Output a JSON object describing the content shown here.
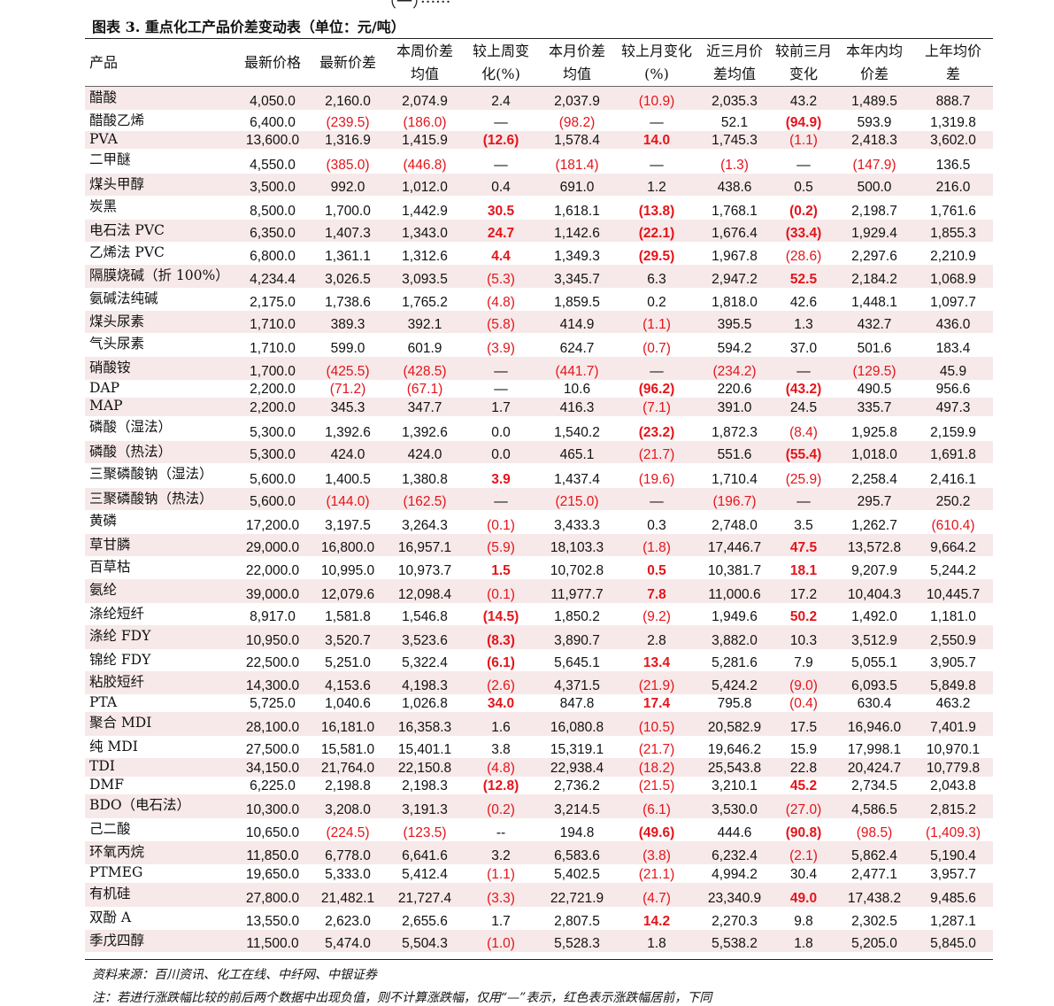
{
  "top_cut": "（一）······",
  "title": "图表 3. 重点化工产品价差变动表（单位：元/吨）",
  "headers": [
    [
      "产品"
    ],
    [
      "最新价格"
    ],
    [
      "最新价差"
    ],
    [
      "本周价差",
      "均值"
    ],
    [
      "较上周变",
      "化(%)"
    ],
    [
      "本月价差",
      "均值"
    ],
    [
      "较上月变化",
      "(%)"
    ],
    [
      "近三月价",
      "差均值"
    ],
    [
      "较前三月",
      "变化"
    ],
    [
      "本年内均",
      "价差"
    ],
    [
      "上年均价",
      "差"
    ]
  ],
  "rows": [
    [
      "醋酸",
      "4,050.0",
      "2,160.0",
      "2,074.9",
      "2.4",
      "2,037.9",
      "(10.9)",
      "2,035.3",
      "43.2",
      "1,489.5",
      "888.7"
    ],
    [
      "醋酸乙烯",
      "6,400.0",
      "(239.5)",
      "(186.0)",
      "—",
      "(98.2)",
      "—",
      "52.1",
      "(94.9)",
      "593.9",
      "1,319.8"
    ],
    [
      "PVA",
      "13,600.0",
      "1,316.9",
      "1,415.9",
      "(12.6)",
      "1,578.4",
      "14.0",
      "1,745.3",
      "(1.1)",
      "2,418.3",
      "3,602.0"
    ],
    [
      "二甲醚",
      "4,550.0",
      "(385.0)",
      "(446.8)",
      "—",
      "(181.4)",
      "—",
      "(1.3)",
      "—",
      "(147.9)",
      "136.5"
    ],
    [
      "煤头甲醇",
      "3,500.0",
      "992.0",
      "1,012.0",
      "0.4",
      "691.0",
      "1.2",
      "438.6",
      "0.5",
      "500.0",
      "216.0"
    ],
    [
      "炭黑",
      "8,500.0",
      "1,700.0",
      "1,442.9",
      "30.5",
      "1,618.1",
      "(13.8)",
      "1,768.1",
      "(0.2)",
      "2,198.7",
      "1,761.6"
    ],
    [
      "电石法 PVC",
      "6,350.0",
      "1,407.3",
      "1,343.0",
      "24.7",
      "1,142.6",
      "(22.1)",
      "1,676.4",
      "(33.4)",
      "1,929.4",
      "1,855.3"
    ],
    [
      "乙烯法 PVC",
      "6,800.0",
      "1,361.1",
      "1,312.6",
      "4.4",
      "1,349.3",
      "(29.5)",
      "1,967.8",
      "(28.6)",
      "2,297.6",
      "2,210.9"
    ],
    [
      "隔膜烧碱（折 100%）",
      "4,234.4",
      "3,026.5",
      "3,093.5",
      "(5.3)",
      "3,345.7",
      "6.3",
      "2,947.2",
      "52.5",
      "2,184.2",
      "1,068.9"
    ],
    [
      "氨碱法纯碱",
      "2,175.0",
      "1,738.6",
      "1,765.2",
      "(4.8)",
      "1,859.5",
      "0.2",
      "1,818.0",
      "42.6",
      "1,448.1",
      "1,097.7"
    ],
    [
      "煤头尿素",
      "1,710.0",
      "389.3",
      "392.1",
      "(5.8)",
      "414.9",
      "(1.1)",
      "395.5",
      "1.3",
      "432.7",
      "436.0"
    ],
    [
      "气头尿素",
      "1,710.0",
      "599.0",
      "601.9",
      "(3.9)",
      "624.7",
      "(0.7)",
      "594.2",
      "37.0",
      "501.6",
      "183.4"
    ],
    [
      "硝酸铵",
      "1,700.0",
      "(425.5)",
      "(428.5)",
      "—",
      "(441.7)",
      "—",
      "(234.2)",
      "—",
      "(129.5)",
      "45.9"
    ],
    [
      "DAP",
      "2,200.0",
      "(71.2)",
      "(67.1)",
      "—",
      "10.6",
      "(96.2)",
      "220.6",
      "(43.2)",
      "490.5",
      "956.6"
    ],
    [
      "MAP",
      "2,200.0",
      "345.3",
      "347.7",
      "1.7",
      "416.3",
      "(7.1)",
      "391.0",
      "24.5",
      "335.7",
      "497.3"
    ],
    [
      "磷酸（湿法）",
      "5,300.0",
      "1,392.6",
      "1,392.6",
      "0.0",
      "1,540.2",
      "(23.2)",
      "1,872.3",
      "(8.4)",
      "1,925.8",
      "2,159.9"
    ],
    [
      "磷酸（热法）",
      "5,300.0",
      "424.0",
      "424.0",
      "0.0",
      "465.1",
      "(21.7)",
      "551.6",
      "(55.4)",
      "1,018.0",
      "1,691.8"
    ],
    [
      "三聚磷酸钠（湿法）",
      "5,600.0",
      "1,400.5",
      "1,380.8",
      "3.9",
      "1,437.4",
      "(19.6)",
      "1,710.4",
      "(25.9)",
      "2,258.4",
      "2,416.1"
    ],
    [
      "三聚磷酸钠（热法）",
      "5,600.0",
      "(144.0)",
      "(162.5)",
      "—",
      "(215.0)",
      "—",
      "(196.7)",
      "—",
      "295.7",
      "250.2"
    ],
    [
      "黄磷",
      "17,200.0",
      "3,197.5",
      "3,264.3",
      "(0.1)",
      "3,433.3",
      "0.3",
      "2,748.0",
      "3.5",
      "1,262.7",
      "(610.4)"
    ],
    [
      "草甘膦",
      "29,000.0",
      "16,800.0",
      "16,957.1",
      "(5.9)",
      "18,103.3",
      "(1.8)",
      "17,446.7",
      "47.5",
      "13,572.8",
      "9,664.2"
    ],
    [
      "百草枯",
      "22,000.0",
      "10,995.0",
      "10,973.7",
      "1.5",
      "10,702.8",
      "0.5",
      "10,381.7",
      "18.1",
      "9,207.9",
      "5,244.2"
    ],
    [
      "氨纶",
      "39,000.0",
      "12,079.6",
      "12,098.4",
      "(0.1)",
      "11,977.7",
      "7.8",
      "11,000.6",
      "17.2",
      "10,404.3",
      "10,445.7"
    ],
    [
      "涤纶短纤",
      "8,917.0",
      "1,581.8",
      "1,546.8",
      "(14.5)",
      "1,850.2",
      "(9.2)",
      "1,949.6",
      "50.2",
      "1,492.0",
      "1,181.0"
    ],
    [
      "涤纶 FDY",
      "10,950.0",
      "3,520.7",
      "3,523.6",
      "(8.3)",
      "3,890.7",
      "2.8",
      "3,882.0",
      "10.3",
      "3,512.9",
      "2,550.9"
    ],
    [
      "锦纶 FDY",
      "22,500.0",
      "5,251.0",
      "5,322.4",
      "(6.1)",
      "5,645.1",
      "13.4",
      "5,281.6",
      "7.9",
      "5,055.1",
      "3,905.7"
    ],
    [
      "粘胶短纤",
      "14,300.0",
      "4,153.6",
      "4,198.3",
      "(2.6)",
      "4,371.5",
      "(21.9)",
      "5,424.2",
      "(9.0)",
      "6,093.5",
      "5,849.8"
    ],
    [
      "PTA",
      "5,725.0",
      "1,040.6",
      "1,026.8",
      "34.0",
      "847.8",
      "17.4",
      "795.8",
      "(0.4)",
      "630.4",
      "463.2"
    ],
    [
      "聚合 MDI",
      "28,100.0",
      "16,181.0",
      "16,358.3",
      "1.6",
      "16,080.8",
      "(10.5)",
      "20,582.9",
      "17.5",
      "16,946.0",
      "7,401.9"
    ],
    [
      "纯 MDI",
      "27,500.0",
      "15,581.0",
      "15,401.1",
      "3.8",
      "15,319.1",
      "(21.7)",
      "19,646.2",
      "15.9",
      "17,998.1",
      "10,970.1"
    ],
    [
      "TDI",
      "34,150.0",
      "21,764.0",
      "22,150.8",
      "(4.8)",
      "22,938.4",
      "(18.2)",
      "25,543.8",
      "22.8",
      "20,424.7",
      "10,779.8"
    ],
    [
      "DMF",
      "6,225.0",
      "2,198.8",
      "2,198.3",
      "(12.8)",
      "2,736.2",
      "(21.5)",
      "3,210.1",
      "45.2",
      "2,734.5",
      "2,043.8"
    ],
    [
      "BDO（电石法）",
      "10,300.0",
      "3,208.0",
      "3,191.3",
      "(0.2)",
      "3,214.5",
      "(6.1)",
      "3,530.0",
      "(27.0)",
      "4,586.5",
      "2,815.2"
    ],
    [
      "己二酸",
      "10,650.0",
      "(224.5)",
      "(123.5)",
      "--",
      "194.8",
      "(49.6)",
      "444.6",
      "(90.8)",
      "(98.5)",
      "(1,409.3)"
    ],
    [
      "环氧丙烷",
      "11,850.0",
      "6,778.0",
      "6,641.6",
      "3.2",
      "6,583.6",
      "(3.8)",
      "6,232.4",
      "(2.1)",
      "5,862.4",
      "5,190.4"
    ],
    [
      "PTMEG",
      "19,650.0",
      "5,333.0",
      "5,412.4",
      "(1.1)",
      "5,402.5",
      "(21.1)",
      "4,994.2",
      "30.4",
      "2,477.1",
      "3,957.7"
    ],
    [
      "有机硅",
      "27,800.0",
      "21,482.1",
      "21,727.4",
      "(3.3)",
      "22,721.9",
      "(4.7)",
      "23,340.9",
      "49.0",
      "17,438.2",
      "9,485.6"
    ],
    [
      "双酚 A",
      "13,550.0",
      "2,623.0",
      "2,655.6",
      "1.7",
      "2,807.5",
      "14.2",
      "2,270.3",
      "9.8",
      "2,302.5",
      "1,287.1"
    ],
    [
      "季戊四醇",
      "11,500.0",
      "5,474.0",
      "5,504.3",
      "(1.0)",
      "5,528.3",
      "1.8",
      "5,538.2",
      "1.8",
      "5,205.0",
      "5,845.0"
    ]
  ],
  "highlight_cells": [
    [
      2,
      4
    ],
    [
      2,
      6
    ],
    [
      5,
      4
    ],
    [
      5,
      6
    ],
    [
      5,
      8
    ],
    [
      6,
      4
    ],
    [
      6,
      6
    ],
    [
      6,
      8
    ],
    [
      7,
      4
    ],
    [
      7,
      6
    ],
    [
      8,
      8
    ],
    [
      1,
      8
    ],
    [
      13,
      6
    ],
    [
      13,
      8
    ],
    [
      15,
      6
    ],
    [
      16,
      8
    ],
    [
      17,
      4
    ],
    [
      20,
      8
    ],
    [
      21,
      4
    ],
    [
      21,
      6
    ],
    [
      21,
      8
    ],
    [
      22,
      6
    ],
    [
      23,
      4
    ],
    [
      23,
      8
    ],
    [
      24,
      4
    ],
    [
      25,
      4
    ],
    [
      25,
      6
    ],
    [
      27,
      4
    ],
    [
      27,
      6
    ],
    [
      31,
      4
    ],
    [
      31,
      8
    ],
    [
      33,
      6
    ],
    [
      33,
      8
    ],
    [
      36,
      8
    ],
    [
      37,
      6
    ]
  ],
  "source": "资料来源：百川资讯、化工在线、中纤网、中银证券",
  "note": "注：若进行涨跌幅比较的前后两个数据中出现负值，则不计算涨跌幅，仅用“—”表示，红色表示涨跌幅居前，下同"
}
